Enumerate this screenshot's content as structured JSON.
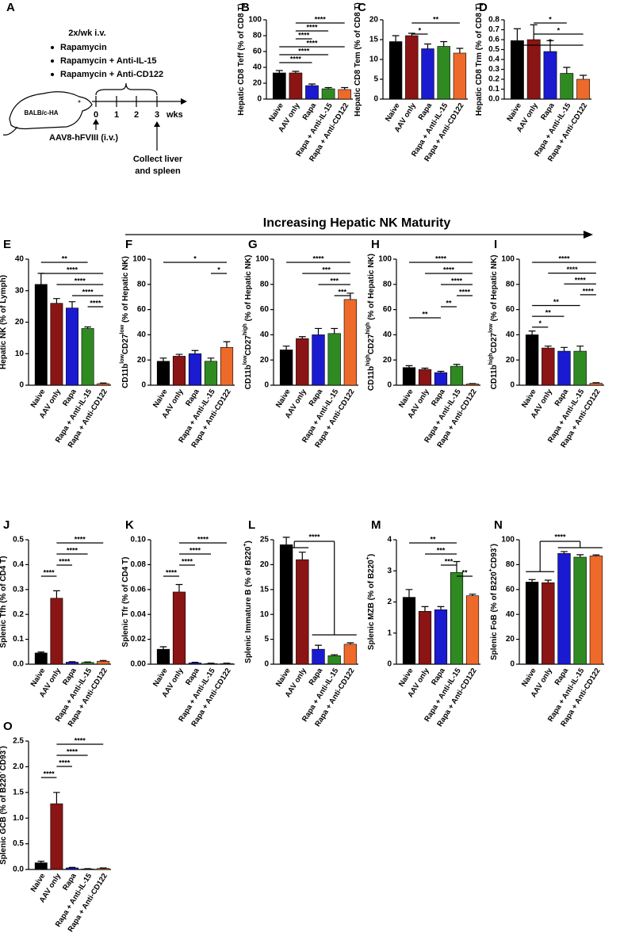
{
  "header": {
    "title": "Increasing Hepatic NK Maturity"
  },
  "schematic": {
    "panel": "A",
    "schedule": "2x/wk i.v.",
    "treatments": [
      "Rapamycin",
      "Rapamycin + Anti-IL-15",
      "Rapamycin + Anti-CD122"
    ],
    "mouse": "BALB/c-HA",
    "timeline": [
      "0",
      "1",
      "2",
      "3"
    ],
    "unit": "wks",
    "injection": "AAV8-hFVIII (i.v.)",
    "collection": [
      "Collect liver",
      "and spleen"
    ]
  },
  "chart_data": [
    {
      "type": "bar",
      "panel": "B",
      "ylabel": [
        "Hepatic CD8 Teff (% of CD8 T)"
      ],
      "categories": [
        "Naive",
        "AAV only",
        "Rapa",
        "Rapa + Anti-IL-15",
        "Rapa + Anti-CD122"
      ],
      "colors": [
        "#000000",
        "#8b1414",
        "#1a1ad0",
        "#2f8a22",
        "#ee6a2a"
      ],
      "values": [
        33,
        33,
        17,
        13,
        12
      ],
      "errors": [
        3,
        2,
        2,
        1.5,
        2.5
      ],
      "ylim": [
        0,
        100
      ],
      "yticks": [
        0,
        20,
        40,
        60,
        80,
        100
      ],
      "brackets": [
        {
          "pair": [
            1,
            4
          ],
          "label": "****"
        },
        {
          "pair": [
            1,
            3
          ],
          "label": "****"
        },
        {
          "pair": [
            1,
            2
          ],
          "label": "****"
        },
        {
          "pair": [
            0,
            4
          ],
          "label": "****"
        },
        {
          "pair": [
            0,
            3
          ],
          "label": "****"
        },
        {
          "pair": [
            0,
            2
          ],
          "label": "****"
        }
      ]
    },
    {
      "type": "bar",
      "panel": "C",
      "ylabel": [
        "Hepatic CD8 Tem (% of CD8 T)"
      ],
      "categories": [
        "Naive",
        "AAV only",
        "Rapa",
        "Rapa + Anti-IL-15",
        "Rapa + Anti-CD122"
      ],
      "colors": [
        "#000000",
        "#8b1414",
        "#1a1ad0",
        "#2f8a22",
        "#ee6a2a"
      ],
      "values": [
        14.5,
        16,
        12.7,
        13.3,
        11.6
      ],
      "errors": [
        1.5,
        0.6,
        1.2,
        1.2,
        1.2
      ],
      "ylim": [
        0,
        20
      ],
      "yticks": [
        0,
        5,
        10,
        15,
        20
      ],
      "brackets": [
        {
          "pair": [
            1,
            4
          ],
          "label": "**"
        },
        {
          "pair": [
            1,
            2
          ],
          "label": "*"
        }
      ]
    },
    {
      "type": "bar",
      "panel": "D",
      "ylabel": [
        "Hepatic CD8 Trm (% of CD8 T)"
      ],
      "categories": [
        "Naive",
        "AAV only",
        "Rapa",
        "Rapa + Anti-IL-15",
        "Rapa + Anti-CD122"
      ],
      "colors": [
        "#000000",
        "#8b1414",
        "#1a1ad0",
        "#2f8a22",
        "#ee6a2a"
      ],
      "values": [
        0.59,
        0.6,
        0.48,
        0.26,
        0.2
      ],
      "errors": [
        0.12,
        0.15,
        0.11,
        0.06,
        0.04
      ],
      "ylim": [
        0,
        0.8
      ],
      "yticks": [
        {
          "value": 0,
          "label": "0.0"
        },
        0.1,
        0.2,
        0.3,
        0.4,
        0.5,
        0.6,
        0.7,
        0.8
      ],
      "brackets": [
        {
          "pair": [
            1,
            3
          ],
          "label": "*"
        },
        {
          "pair": [
            1,
            4
          ],
          "label": "*"
        },
        {
          "pair": [
            0,
            4
          ],
          "label": "*"
        }
      ]
    },
    {
      "type": "bar",
      "panel": "E",
      "ylabel": [
        "Hepatic NK (% of Lymph)"
      ],
      "categories": [
        "Naive",
        "AAV only",
        "Rapa",
        "Rapa + Anti-IL-15",
        "Rapa + Anti-CD122"
      ],
      "colors": [
        "#000000",
        "#8b1414",
        "#1a1ad0",
        "#2f8a22",
        "#ee6a2a"
      ],
      "values": [
        32,
        26,
        24.5,
        18,
        0.5
      ],
      "errors": [
        3.5,
        1.5,
        2,
        0.5,
        0.2
      ],
      "ylim": [
        0,
        40
      ],
      "yticks": [
        0,
        10,
        20,
        30,
        40
      ],
      "brackets": [
        {
          "pair": [
            0,
            3
          ],
          "label": "**"
        },
        {
          "pair": [
            0,
            4
          ],
          "label": "****"
        },
        {
          "pair": [
            1,
            4
          ],
          "label": "****"
        },
        {
          "pair": [
            2,
            4
          ],
          "label": "****"
        },
        {
          "pair": [
            3,
            4
          ],
          "label": "****"
        }
      ]
    },
    {
      "type": "bar",
      "panel": "F",
      "ylabel": [
        "CD11b",
        "low",
        "CD27",
        "low",
        " (% of Hepatic NK)"
      ],
      "categories": [
        "Naive",
        "AAV only",
        "Rapa",
        "Rapa + Anti-IL-15",
        "Rapa + Anti-CD122"
      ],
      "colors": [
        "#000000",
        "#8b1414",
        "#1a1ad0",
        "#2f8a22",
        "#ee6a2a"
      ],
      "values": [
        19,
        23,
        25,
        19,
        30
      ],
      "errors": [
        2.5,
        1.5,
        2.5,
        2.5,
        4.5
      ],
      "ylim": [
        0,
        100
      ],
      "yticks": [
        0,
        20,
        40,
        60,
        80,
        100
      ],
      "brackets": [
        {
          "pair": [
            0,
            4
          ],
          "label": "*"
        },
        {
          "pair": [
            3,
            4
          ],
          "label": "*"
        }
      ]
    },
    {
      "type": "bar",
      "panel": "G",
      "ylabel": [
        "CD11b",
        "low",
        "CD27",
        "high",
        " (% of Hepatic NK)"
      ],
      "categories": [
        "Naive",
        "AAV only",
        "Rapa",
        "Rapa + Anti-IL-15",
        "Rapa + Anti-CD122"
      ],
      "colors": [
        "#000000",
        "#8b1414",
        "#1a1ad0",
        "#2f8a22",
        "#ee6a2a"
      ],
      "values": [
        28,
        37,
        40,
        41,
        68
      ],
      "errors": [
        3,
        1.5,
        5,
        4,
        5
      ],
      "ylim": [
        0,
        100
      ],
      "yticks": [
        0,
        20,
        40,
        60,
        80,
        100
      ],
      "brackets": [
        {
          "pair": [
            0,
            4
          ],
          "label": "****"
        },
        {
          "pair": [
            1,
            4
          ],
          "label": "***"
        },
        {
          "pair": [
            2,
            4
          ],
          "label": "***"
        },
        {
          "pair": [
            3,
            4
          ],
          "label": "***"
        }
      ]
    },
    {
      "type": "bar",
      "panel": "H",
      "ylabel": [
        "CD11b",
        "high",
        "CD27",
        "high",
        " (% of Hepatic NK)"
      ],
      "categories": [
        "Naive",
        "AAV only",
        "Rapa",
        "Rapa + Anti-IL-15",
        "Rapa + Anti-CD122"
      ],
      "colors": [
        "#000000",
        "#8b1414",
        "#1a1ad0",
        "#2f8a22",
        "#ee6a2a"
      ],
      "values": [
        14,
        12.5,
        10,
        15,
        1
      ],
      "errors": [
        1.5,
        1,
        1,
        1.5,
        0.3
      ],
      "ylim": [
        0,
        100
      ],
      "yticks": [
        0,
        20,
        40,
        60,
        80,
        100
      ],
      "brackets": [
        {
          "pair": [
            0,
            4
          ],
          "label": "****"
        },
        {
          "pair": [
            1,
            4
          ],
          "label": "****"
        },
        {
          "pair": [
            2,
            4
          ],
          "label": "****"
        },
        {
          "pair": [
            3,
            4
          ],
          "label": "****"
        },
        {
          "pair": [
            2,
            3
          ],
          "label": "**"
        },
        {
          "pair": [
            0,
            2
          ],
          "label": "**"
        }
      ]
    },
    {
      "type": "bar",
      "panel": "I",
      "ylabel": [
        "CD11b",
        "high",
        "CD27",
        "low",
        " (% of Hepatic NK)"
      ],
      "categories": [
        "Naive",
        "AAV only",
        "Rapa",
        "Rapa + Anti-IL-15",
        "Rapa + Anti-CD122"
      ],
      "colors": [
        "#000000",
        "#8b1414",
        "#1a1ad0",
        "#2f8a22",
        "#ee6a2a"
      ],
      "values": [
        40,
        29.5,
        27,
        27,
        1.5
      ],
      "errors": [
        3,
        1.5,
        3,
        4,
        0.5
      ],
      "ylim": [
        0,
        100
      ],
      "yticks": [
        0,
        20,
        40,
        60,
        80,
        100
      ],
      "brackets": [
        {
          "pair": [
            0,
            4
          ],
          "label": "****"
        },
        {
          "pair": [
            1,
            4
          ],
          "label": "****"
        },
        {
          "pair": [
            2,
            4
          ],
          "label": "****"
        },
        {
          "pair": [
            3,
            4
          ],
          "label": "****"
        },
        {
          "pair": [
            0,
            3
          ],
          "label": "**"
        },
        {
          "pair": [
            0,
            2
          ],
          "label": "**"
        },
        {
          "pair": [
            0,
            1
          ],
          "label": "*"
        }
      ]
    },
    {
      "type": "bar",
      "panel": "J",
      "ylabel": [
        "Splenic Tfh (% of CD4 T)"
      ],
      "categories": [
        "Naive",
        "AAV only",
        "Rapa",
        "Rapa + Anti-IL-15",
        "Rapa + Anti-CD122"
      ],
      "colors": [
        "#000000",
        "#8b1414",
        "#1a1ad0",
        "#2f8a22",
        "#ee6a2a"
      ],
      "values": [
        0.045,
        0.265,
        0.008,
        0.007,
        0.012
      ],
      "errors": [
        0.004,
        0.03,
        0.002,
        0.002,
        0.003
      ],
      "ylim": [
        0,
        0.5
      ],
      "yticks": [
        {
          "value": 0,
          "label": "0.0"
        },
        0.1,
        0.2,
        0.3,
        0.4,
        0.5
      ],
      "brackets": [
        {
          "pair": [
            1,
            4
          ],
          "label": "****"
        },
        {
          "pair": [
            1,
            3
          ],
          "label": "****"
        },
        {
          "pair": [
            1,
            2
          ],
          "label": "****"
        },
        {
          "pair": [
            0,
            1
          ],
          "label": "****"
        }
      ]
    },
    {
      "type": "bar",
      "panel": "K",
      "ylabel": [
        "Splenic Tfr (% of CD4 T)"
      ],
      "categories": [
        "Naive",
        "AAV only",
        "Rapa",
        "Rapa + Anti-IL-15",
        "Rapa + Anti-CD122"
      ],
      "colors": [
        "#000000",
        "#8b1414",
        "#1a1ad0",
        "#2f8a22",
        "#ee6a2a"
      ],
      "values": [
        0.012,
        0.058,
        0.001,
        0.0005,
        0.0005
      ],
      "errors": [
        0.002,
        0.006,
        0.0005,
        0.0003,
        0.0003
      ],
      "ylim": [
        0,
        0.1
      ],
      "yticks": [
        {
          "value": 0,
          "label": "0.00"
        },
        0.02,
        0.04,
        0.06,
        0.08,
        {
          "value": 0.1,
          "label": "0.10"
        }
      ],
      "brackets": [
        {
          "pair": [
            1,
            4
          ],
          "label": "****"
        },
        {
          "pair": [
            1,
            3
          ],
          "label": "****"
        },
        {
          "pair": [
            1,
            2
          ],
          "label": "****"
        },
        {
          "pair": [
            0,
            1
          ],
          "label": "****"
        }
      ]
    },
    {
      "type": "bar",
      "panel": "L",
      "ylabel": [
        "Splenic Immature B (% of B220",
        "+",
        ")"
      ],
      "categories": [
        "Naive",
        "AAV only",
        "Rapa",
        "Rapa + Anti-IL-15",
        "Rapa + Anti-CD122"
      ],
      "colors": [
        "#000000",
        "#8b1414",
        "#1a1ad0",
        "#2f8a22",
        "#ee6a2a"
      ],
      "values": [
        24,
        21,
        3,
        1.7,
        4
      ],
      "errors": [
        1.5,
        1.5,
        0.8,
        0.2,
        0.3
      ],
      "ylim": [
        0,
        25
      ],
      "yticks": [
        0,
        5,
        10,
        15,
        20,
        25
      ],
      "brackets": [
        {
          "groups": [
            [
              0,
              1
            ],
            [
              2,
              3,
              4
            ]
          ],
          "label": "****"
        }
      ]
    },
    {
      "type": "bar",
      "panel": "M",
      "ylabel": [
        "Splenic MZB (% of B220",
        "+",
        ")"
      ],
      "categories": [
        "Naive",
        "AAV only",
        "Rapa",
        "Rapa + Anti-IL-15",
        "Rapa + Anti-CD122"
      ],
      "colors": [
        "#000000",
        "#8b1414",
        "#1a1ad0",
        "#2f8a22",
        "#ee6a2a"
      ],
      "values": [
        2.15,
        1.7,
        1.75,
        2.95,
        2.2
      ],
      "errors": [
        0.25,
        0.15,
        0.1,
        0.35,
        0.05
      ],
      "ylim": [
        0,
        4
      ],
      "yticks": [
        0,
        1,
        2,
        3,
        4
      ],
      "brackets": [
        {
          "pair": [
            0,
            3
          ],
          "label": "**"
        },
        {
          "pair": [
            1,
            3
          ],
          "label": "***"
        },
        {
          "pair": [
            2,
            3
          ],
          "label": "***"
        },
        {
          "pair": [
            3,
            4
          ],
          "label": "**"
        }
      ]
    },
    {
      "type": "bar",
      "panel": "N",
      "ylabel": [
        "Splenic FoB (% of B220",
        "+",
        "CD93",
        "-",
        ")"
      ],
      "categories": [
        "Naive",
        "AAV only",
        "Rapa",
        "Rapa + Anti-IL-15",
        "Rapa + Anti-CD122"
      ],
      "colors": [
        "#000000",
        "#8b1414",
        "#1a1ad0",
        "#2f8a22",
        "#ee6a2a"
      ],
      "values": [
        66,
        65.5,
        89,
        86,
        87
      ],
      "errors": [
        2,
        2,
        1.5,
        2,
        0.8
      ],
      "ylim": [
        0,
        100
      ],
      "yticks": [
        0,
        20,
        40,
        60,
        80,
        100
      ],
      "brackets": [
        {
          "groups": [
            [
              0,
              1
            ],
            [
              2,
              3,
              4
            ]
          ],
          "label": "****"
        }
      ]
    },
    {
      "type": "bar",
      "panel": "O",
      "ylabel": [
        "Splenic GCB (% of B220",
        "+",
        "CD93",
        "-",
        ")"
      ],
      "categories": [
        "Naive",
        "AAV only",
        "Rapa",
        "Rapa + Anti-IL-15",
        "Rapa + Anti-CD122"
      ],
      "colors": [
        "#000000",
        "#8b1414",
        "#1a1ad0",
        "#2f8a22",
        "#ee6a2a"
      ],
      "values": [
        0.13,
        1.28,
        0.03,
        0.01,
        0.02
      ],
      "errors": [
        0.03,
        0.22,
        0.01,
        0.005,
        0.01
      ],
      "ylim": [
        0,
        2.5
      ],
      "yticks": [
        {
          "value": 0,
          "label": "0.0"
        },
        0.5,
        {
          "value": 1,
          "label": "1.0"
        },
        1.5,
        {
          "value": 2,
          "label": "2.0"
        },
        2.5
      ],
      "brackets": [
        {
          "pair": [
            1,
            4
          ],
          "label": "****"
        },
        {
          "pair": [
            1,
            3
          ],
          "label": "****"
        },
        {
          "pair": [
            1,
            2
          ],
          "label": "****"
        },
        {
          "pair": [
            0,
            1
          ],
          "label": "****"
        }
      ]
    }
  ]
}
